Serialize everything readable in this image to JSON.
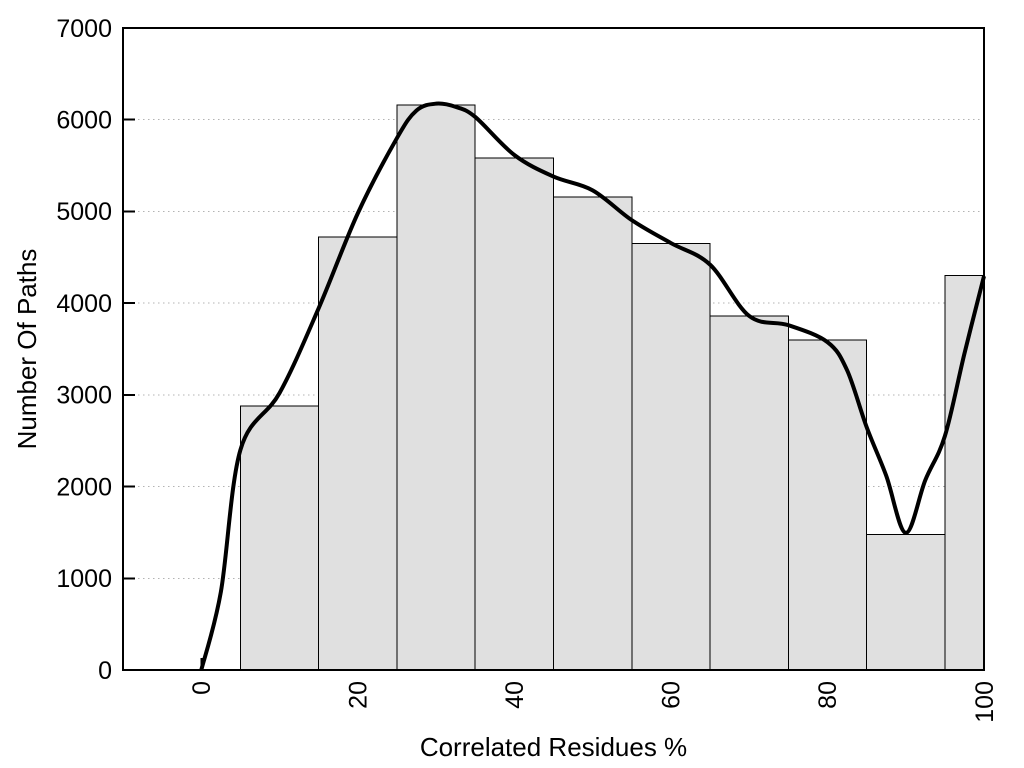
{
  "chart_data": {
    "type": "bar",
    "title": "",
    "xlabel": "Correlated Residues %",
    "ylabel": "Number Of Paths",
    "xlim": [
      -10,
      100
    ],
    "ylim": [
      0,
      7000
    ],
    "x_ticks": [
      0,
      20,
      40,
      60,
      80,
      100
    ],
    "y_ticks": [
      0,
      1000,
      2000,
      3000,
      4000,
      5000,
      6000,
      7000
    ],
    "grid": {
      "horizontal": "dotted",
      "vertical": "none"
    },
    "legend_position": "none",
    "x_tick_label_rotation_deg": -90,
    "bars": {
      "bin_centers": [
        10,
        20,
        30,
        40,
        50,
        60,
        70,
        80,
        90,
        100
      ],
      "bin_width": 10,
      "values": [
        2880,
        4720,
        6160,
        5580,
        5160,
        4650,
        3860,
        3600,
        1480,
        4300
      ],
      "note": "last bin clipped at right plot edge x=100"
    },
    "series": [
      {
        "name": "smooth-fit-curve",
        "type": "line",
        "points": [
          [
            0,
            0
          ],
          [
            2.5,
            850
          ],
          [
            5,
            2400
          ],
          [
            10,
            3020
          ],
          [
            15,
            3945
          ],
          [
            20,
            4980
          ],
          [
            25,
            5800
          ],
          [
            27.5,
            6100
          ],
          [
            30,
            6175
          ],
          [
            32.5,
            6140
          ],
          [
            35,
            6030
          ],
          [
            40,
            5615
          ],
          [
            45,
            5380
          ],
          [
            50,
            5230
          ],
          [
            55,
            4905
          ],
          [
            60,
            4655
          ],
          [
            65,
            4420
          ],
          [
            70,
            3860
          ],
          [
            75,
            3760
          ],
          [
            80,
            3575
          ],
          [
            82.5,
            3270
          ],
          [
            85,
            2650
          ],
          [
            87.5,
            2120
          ],
          [
            90,
            1495
          ],
          [
            92.5,
            2070
          ],
          [
            95,
            2550
          ],
          [
            97.5,
            3450
          ],
          [
            100,
            4295
          ]
        ]
      }
    ],
    "colors": {
      "background": "#ffffff",
      "bar_fill": "#e0e0e0",
      "bar_border": "#000000",
      "curve": "#000000",
      "frame": "#000000",
      "grid": "#b3b3b3",
      "text": "#000000"
    }
  }
}
